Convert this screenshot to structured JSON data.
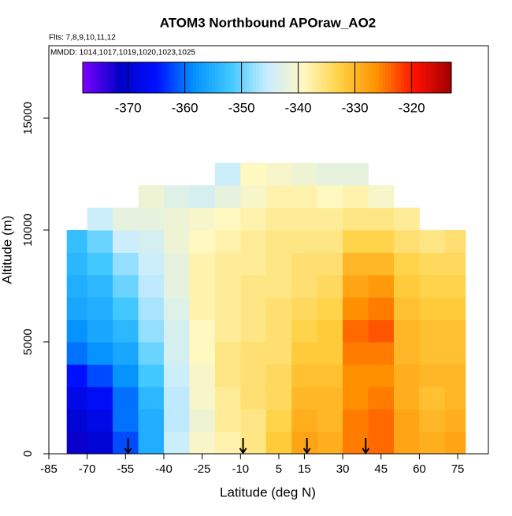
{
  "chart_data": {
    "type": "heatmap",
    "title": "ATOM3 Northbound APOraw_AO2",
    "flights_note": "Flts: 7,8,9,10,11,12",
    "dates_note": "MMDD: 1014,1017,1019,1020,1023,1025",
    "x_label": "Latitude (deg N)",
    "y_label": "Altitude (m)",
    "xlim": [
      -85,
      87
    ],
    "ylim": [
      0,
      18240
    ],
    "xticks": [
      -85,
      -70,
      -55,
      -40,
      -25,
      -10,
      5,
      15,
      30,
      45,
      60,
      75
    ],
    "yticks": [
      0,
      5000,
      10000,
      15000
    ],
    "lat_edges": [
      -78,
      -70,
      -60,
      -50,
      -40,
      -30,
      -20,
      -10,
      0,
      10,
      20,
      30,
      40,
      50,
      60,
      70,
      78
    ],
    "alt_step": 1000,
    "values": [
      [
        -372,
        -370,
        -368,
        -365,
        -360,
        -358,
        -356,
        -355,
        -354,
        -353
      ],
      [
        -370,
        -368,
        -366,
        -362,
        -358,
        -356,
        -355,
        -354,
        -352,
        -350,
        -345
      ],
      [
        -362,
        -360,
        -360,
        -358,
        -356,
        -354,
        -352,
        -350,
        -348,
        -345,
        -342
      ],
      [
        -355,
        -355,
        -354,
        -352,
        -350,
        -348,
        -347,
        -346,
        -345,
        -344,
        -342,
        -341
      ],
      [
        -345,
        -346,
        -346,
        -345,
        -344,
        -344,
        -343,
        -342,
        -342,
        -341,
        -341,
        -343
      ],
      [
        -340,
        -341,
        -340,
        -340,
        -339,
        -339,
        -338,
        -338,
        -338,
        -339,
        -340,
        -344
      ],
      [
        -338,
        -337,
        -337,
        -336,
        -336,
        -337,
        -337,
        -337,
        -337,
        -338,
        -339,
        -342,
        -345
      ],
      [
        -336,
        -336,
        -335,
        -335,
        -335,
        -336,
        -336,
        -336,
        -337,
        -337,
        -338,
        -340,
        -339
      ],
      [
        -332,
        -333,
        -334,
        -334,
        -335,
        -335,
        -335,
        -336,
        -336,
        -336,
        -337,
        -338,
        -340
      ],
      [
        -328,
        -329,
        -330,
        -331,
        -332,
        -333,
        -334,
        -335,
        -335,
        -336,
        -337,
        -338,
        -341
      ],
      [
        -329,
        -330,
        -330,
        -331,
        -332,
        -332,
        -333,
        -334,
        -335,
        -336,
        -337,
        -339,
        -342
      ],
      [
        -325,
        -325,
        -326,
        -326,
        -325,
        -324,
        -326,
        -328,
        -330,
        -333,
        -336,
        -338,
        -342
      ],
      [
        -324,
        -324,
        -325,
        -326,
        -325,
        -323,
        -325,
        -327,
        -330,
        -333,
        -336,
        -340
      ],
      [
        -328,
        -328,
        -329,
        -329,
        -330,
        -330,
        -331,
        -332,
        -333,
        -335,
        -337
      ],
      [
        -329,
        -330,
        -331,
        -330,
        -331,
        -331,
        -332,
        -333,
        -334,
        -336
      ],
      [
        -328,
        -329,
        -330,
        -330,
        -331,
        -331,
        -332,
        -333,
        -334,
        -335
      ]
    ],
    "clim": [
      -378,
      -313
    ],
    "cticks": [
      -370,
      -360,
      -350,
      -340,
      -330,
      -320
    ],
    "colors": [
      "#7f00ff",
      "#0000c8",
      "#0010ff",
      "#0090ff",
      "#40c8ff",
      "#c8ecff",
      "#fff8c0",
      "#ffd040",
      "#ff9000",
      "#ff1000",
      "#a00000"
    ],
    "arrow_lats": [
      -54,
      -9,
      16,
      39
    ]
  }
}
